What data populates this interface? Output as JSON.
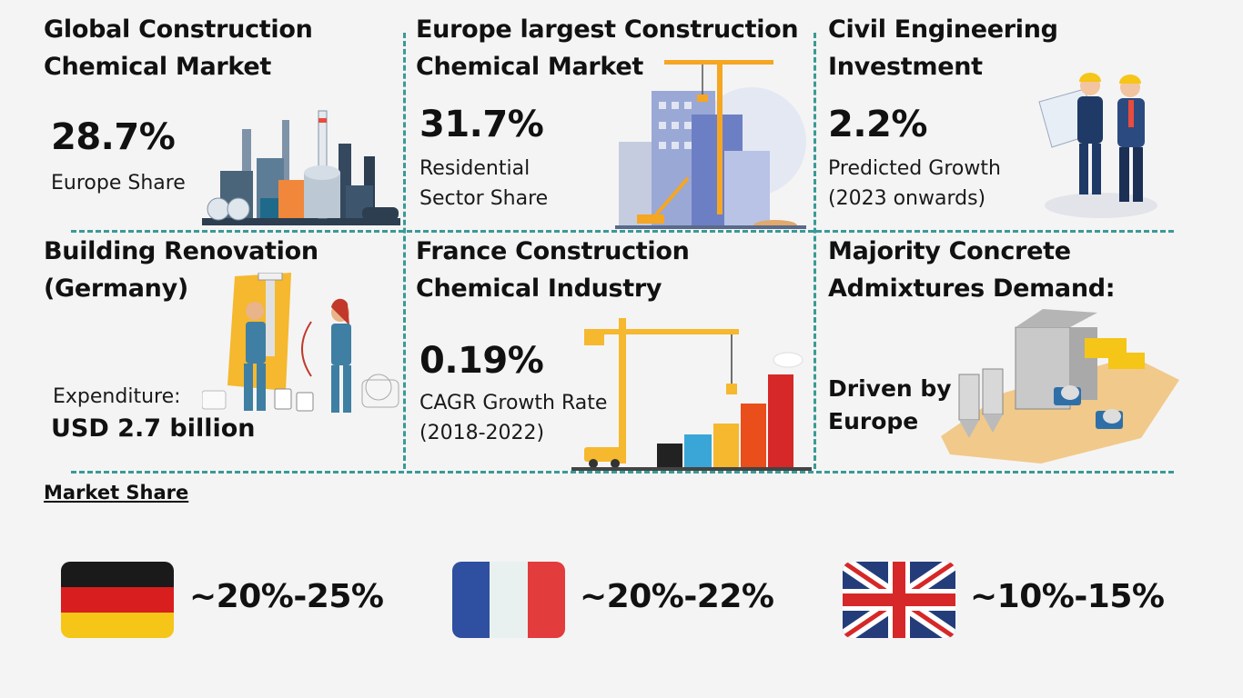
{
  "cards": [
    {
      "title_line1": "Global Construction",
      "title_line2": "Chemical Market",
      "value": "28.7%",
      "desc_line1": "Europe Share",
      "desc_line2": ""
    },
    {
      "title_line1": "Europe largest Construction",
      "title_line2": "Chemical Market",
      "value": "31.7%",
      "desc_line1": "Residential",
      "desc_line2": "Sector Share"
    },
    {
      "title_line1": "Civil Engineering",
      "title_line2": "Investment",
      "value": "2.2%",
      "desc_line1": "Predicted Growth",
      "desc_line2": "(2023 onwards)"
    },
    {
      "title_line1": "Building Renovation",
      "title_line2": "(Germany)",
      "desc_line1": "Expenditure:",
      "value": "USD 2.7 billion"
    },
    {
      "title_line1": "France Construction",
      "title_line2": "Chemical Industry",
      "value": "0.19%",
      "desc_line1": "CAGR Growth Rate",
      "desc_line2": "(2018-2022)"
    },
    {
      "title_line1": "Majority Concrete",
      "title_line2": "Admixtures Demand:",
      "desc_line1": "Driven by",
      "desc_line2": "Europe"
    }
  ],
  "market_share": {
    "heading": "Market Share",
    "items": [
      {
        "country": "Germany",
        "flag_icon": "germany-flag-icon",
        "range": "~20%-25%"
      },
      {
        "country": "France",
        "flag_icon": "france-flag-icon",
        "range": "~20%-22%"
      },
      {
        "country": "United Kingdom",
        "flag_icon": "uk-flag-icon",
        "range": "~10%-15%"
      }
    ]
  },
  "colors": {
    "divider": "#3a9a97",
    "background": "#f4f4f4"
  }
}
